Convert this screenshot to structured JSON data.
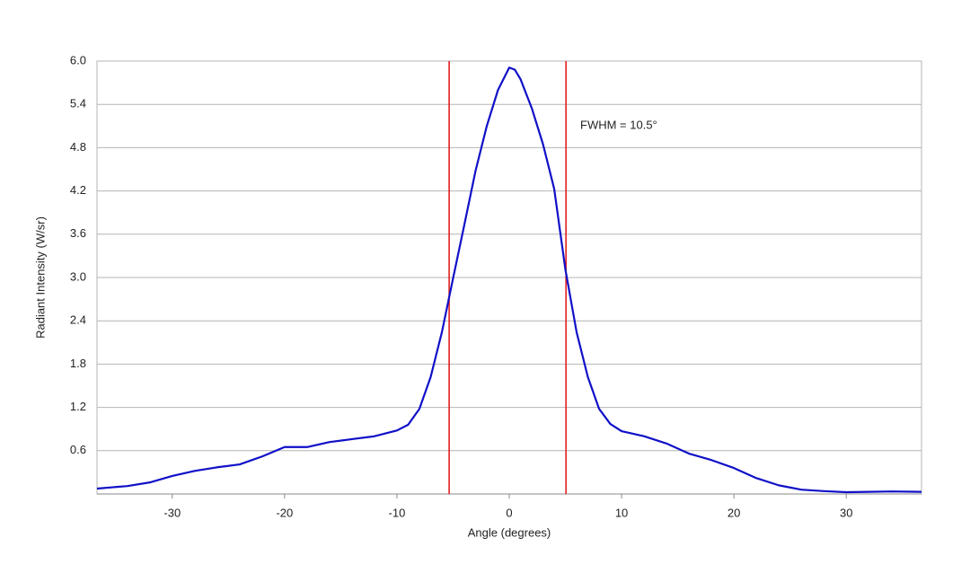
{
  "chart_data": {
    "type": "line",
    "x_label": "Angle (degrees)",
    "y_label": "Radiant Intensity (W/sr)",
    "annotation": "FWHM = 10.5°",
    "xlim": [
      -36.7,
      36.7
    ],
    "ylim": [
      0,
      6
    ],
    "xticks": [
      -30,
      -20,
      -10,
      0,
      10,
      20,
      30
    ],
    "yticks": [
      0.6,
      1.2,
      1.8,
      2.4,
      {
        "value": 3,
        "label": "3.0"
      },
      3.6,
      4.2,
      4.8,
      5.4,
      {
        "value": 6,
        "label": "6.0"
      }
    ],
    "grid": true,
    "vlines": [
      -5.35,
      5.05
    ],
    "vline_color": "#e02020",
    "series": [
      {
        "color": "#1010c8",
        "x": [
          -36.7,
          -34,
          -32,
          -30,
          -28,
          -26,
          -24,
          -22,
          -20,
          -18,
          -16,
          -14,
          -12,
          -10,
          -9,
          -8,
          -7,
          -6,
          -5,
          -4,
          -3,
          -2,
          -1,
          0,
          0.5,
          1,
          2,
          3,
          4,
          5,
          6,
          7,
          8,
          9,
          10,
          12,
          14,
          16,
          18,
          20,
          22,
          24,
          26,
          28,
          30,
          32,
          34,
          36.7
        ],
        "values": [
          0.075,
          0.11,
          0.16,
          0.25,
          0.32,
          0.37,
          0.41,
          0.52,
          0.65,
          0.65,
          0.72,
          0.76,
          0.8,
          0.88,
          0.96,
          1.18,
          1.62,
          2.24,
          2.99,
          3.73,
          4.48,
          5.1,
          5.6,
          5.91,
          5.88,
          5.75,
          5.35,
          4.85,
          4.23,
          3.11,
          2.24,
          1.62,
          1.18,
          0.97,
          0.87,
          0.8,
          0.7,
          0.56,
          0.47,
          0.36,
          0.22,
          0.12,
          0.06,
          0.04,
          0.025,
          0.03,
          0.035,
          0.03
        ]
      }
    ]
  }
}
